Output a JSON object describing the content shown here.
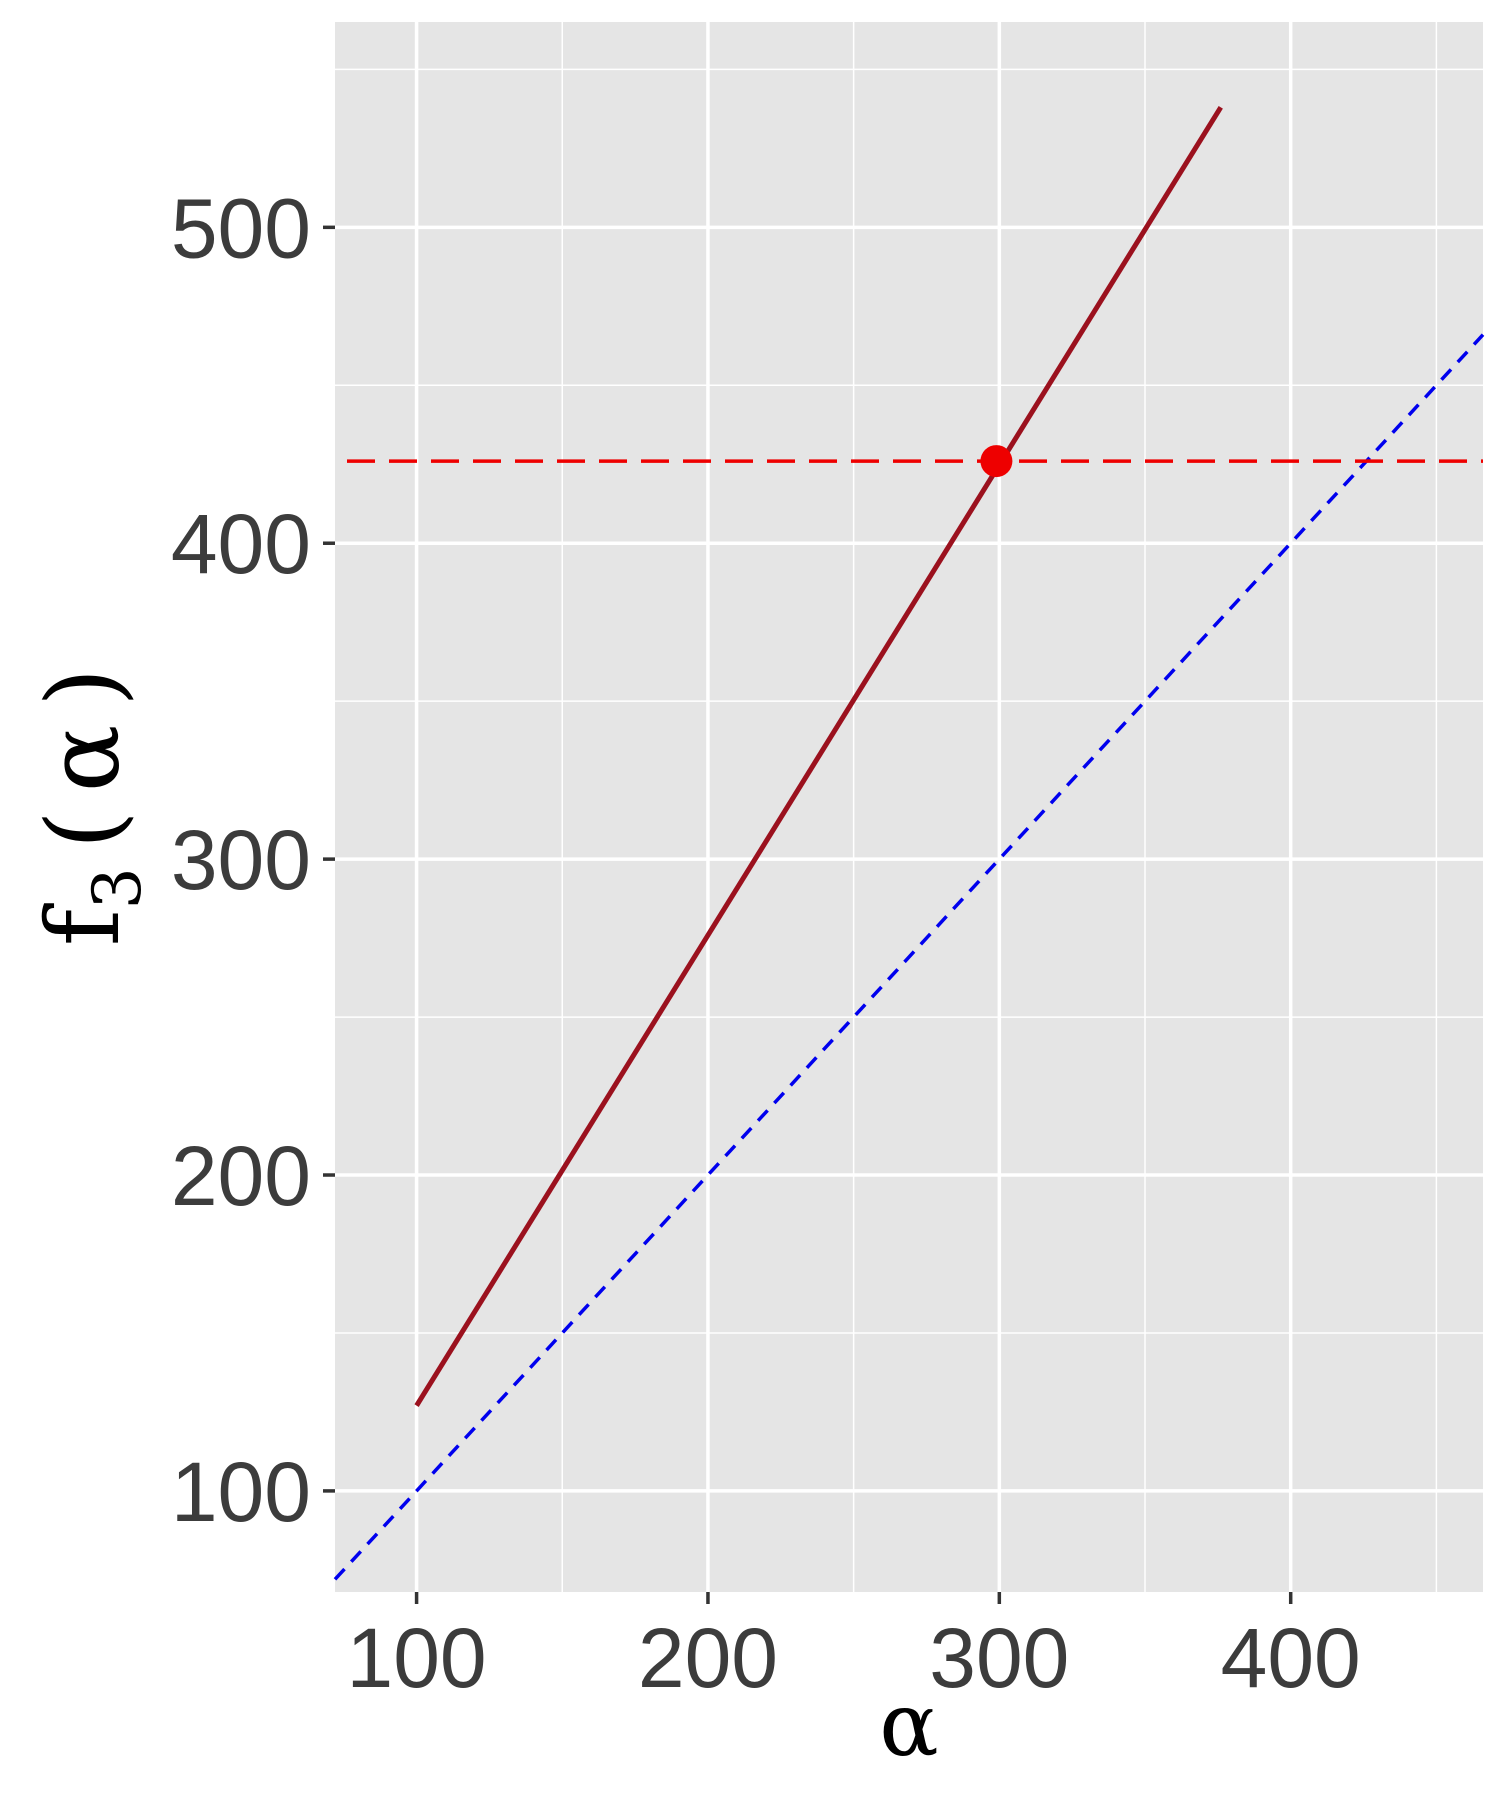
{
  "chart_data": {
    "type": "line",
    "xlabel": "α",
    "ylabel": {
      "base": "f",
      "subscript": "3",
      "open": "(",
      "arg": "α",
      "close": ")"
    },
    "xlim": [
      72,
      466
    ],
    "ylim": [
      68,
      565
    ],
    "x_ticks": [
      100,
      200,
      300,
      400
    ],
    "x_tick_labels": [
      "100",
      "200",
      "300",
      "400"
    ],
    "x_minor_ticks": [
      150,
      250,
      350,
      450
    ],
    "y_ticks": [
      100,
      200,
      300,
      400,
      500
    ],
    "y_tick_labels": [
      "100",
      "200",
      "300",
      "400",
      "500"
    ],
    "y_minor_ticks": [
      150,
      250,
      350,
      450,
      550
    ],
    "grid": true,
    "background": "#e5e5e5",
    "series": [
      {
        "style": "solid",
        "color": "#9b111e",
        "x": [
          100,
          376
        ],
        "y": [
          127,
          538
        ]
      },
      {
        "style": "dashed",
        "color": "#0000ee",
        "x": [
          72,
          466
        ],
        "y": [
          72,
          466
        ]
      },
      {
        "style": "dashed-horizontal",
        "color": "#ee0000",
        "y": 426
      }
    ],
    "point": {
      "x": 299,
      "y": 426,
      "color": "#ee0000"
    }
  }
}
